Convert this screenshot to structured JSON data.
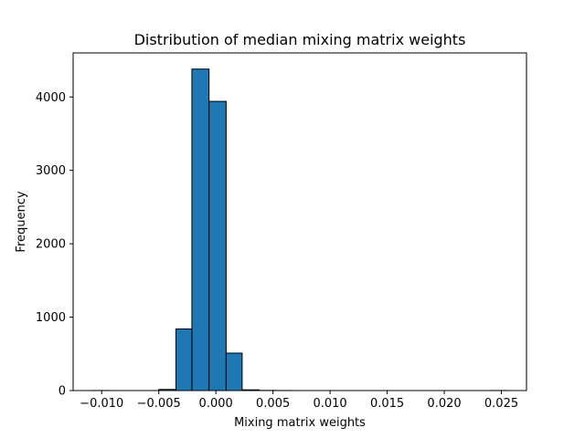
{
  "chart_data": {
    "type": "bar",
    "title": "Distribution of median mixing matrix weights",
    "xlabel": "Mixing matrix weights",
    "ylabel": "Frequency",
    "xlim": [
      -0.0125,
      0.0272
    ],
    "ylim": [
      0,
      4600
    ],
    "x_ticks": [
      -0.01,
      -0.005,
      0.0,
      0.005,
      0.01,
      0.015,
      0.02,
      0.025
    ],
    "x_tick_labels": [
      "−0.010",
      "−0.005",
      "0.000",
      "0.005",
      "0.010",
      "0.015",
      "0.020",
      "0.025"
    ],
    "y_ticks": [
      0,
      1000,
      2000,
      3000,
      4000
    ],
    "y_tick_labels": [
      "0",
      "1000",
      "2000",
      "3000",
      "4000"
    ],
    "bins": [
      {
        "x0": -0.0108,
        "x1": -0.0093,
        "count": 1
      },
      {
        "x0": -0.0093,
        "x1": -0.0079,
        "count": 0
      },
      {
        "x0": -0.0079,
        "x1": -0.0064,
        "count": 0
      },
      {
        "x0": -0.0064,
        "x1": -0.005,
        "count": 0
      },
      {
        "x0": -0.005,
        "x1": -0.0035,
        "count": 15
      },
      {
        "x0": -0.0035,
        "x1": -0.0021,
        "count": 840
      },
      {
        "x0": -0.0021,
        "x1": -0.0006,
        "count": 4380
      },
      {
        "x0": -0.0006,
        "x1": 0.0009,
        "count": 3940
      },
      {
        "x0": 0.0009,
        "x1": 0.0023,
        "count": 510
      },
      {
        "x0": 0.0023,
        "x1": 0.0038,
        "count": 10
      },
      {
        "x0": 0.0038,
        "x1": 0.0052,
        "count": 2
      },
      {
        "x0": 0.0052,
        "x1": 0.0067,
        "count": 1
      },
      {
        "x0": 0.0067,
        "x1": 0.0081,
        "count": 0
      },
      {
        "x0": 0.0081,
        "x1": 0.0096,
        "count": 0
      },
      {
        "x0": 0.0096,
        "x1": 0.011,
        "count": 0
      },
      {
        "x0": 0.011,
        "x1": 0.0125,
        "count": 0
      },
      {
        "x0": 0.0125,
        "x1": 0.0139,
        "count": 0
      },
      {
        "x0": 0.0139,
        "x1": 0.0154,
        "count": 0
      },
      {
        "x0": 0.0154,
        "x1": 0.0168,
        "count": 0
      },
      {
        "x0": 0.0168,
        "x1": 0.0183,
        "count": 0
      },
      {
        "x0": 0.0183,
        "x1": 0.0197,
        "count": 0
      },
      {
        "x0": 0.0197,
        "x1": 0.0212,
        "count": 0
      },
      {
        "x0": 0.0212,
        "x1": 0.0226,
        "count": 0
      },
      {
        "x0": 0.0226,
        "x1": 0.0241,
        "count": 0
      },
      {
        "x0": 0.0241,
        "x1": 0.0255,
        "count": 1
      }
    ],
    "grid": false,
    "legend": "none",
    "colors": {
      "bar_fill": "#1f77b4",
      "bar_edge": "#000000",
      "axes": "#000000"
    }
  }
}
